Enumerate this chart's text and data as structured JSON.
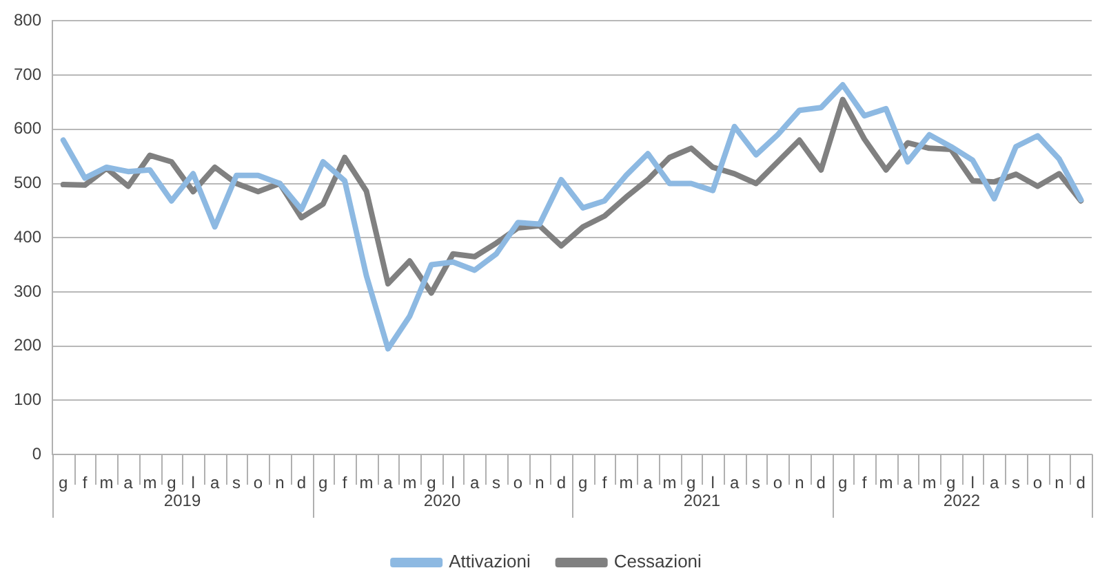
{
  "chart_data": {
    "type": "line",
    "categories": [
      "g",
      "f",
      "m",
      "a",
      "m",
      "g",
      "l",
      "a",
      "s",
      "o",
      "n",
      "d",
      "g",
      "f",
      "m",
      "a",
      "m",
      "g",
      "l",
      "a",
      "s",
      "o",
      "n",
      "d",
      "g",
      "f",
      "m",
      "a",
      "m",
      "g",
      "l",
      "a",
      "s",
      "o",
      "n",
      "d",
      "g",
      "f",
      "m",
      "a",
      "m",
      "g",
      "l",
      "a",
      "s",
      "o",
      "n",
      "d"
    ],
    "series": [
      {
        "name": "Attivazioni",
        "color": "#8db9e2",
        "values": [
          580,
          510,
          530,
          522,
          525,
          468,
          518,
          420,
          515,
          515,
          500,
          452,
          540,
          505,
          330,
          195,
          255,
          350,
          355,
          340,
          370,
          428,
          425,
          507,
          455,
          468,
          515,
          555,
          500,
          500,
          487,
          605,
          553,
          590,
          635,
          640,
          682,
          625,
          638,
          540,
          590,
          568,
          543,
          472,
          568,
          588,
          545,
          470
        ]
      },
      {
        "name": "Cessazioni",
        "color": "#808080",
        "values": [
          498,
          497,
          528,
          495,
          552,
          540,
          485,
          530,
          500,
          485,
          500,
          437,
          462,
          548,
          486,
          315,
          357,
          298,
          370,
          365,
          390,
          418,
          422,
          385,
          420,
          440,
          475,
          507,
          548,
          565,
          530,
          518,
          500,
          540,
          580,
          525,
          655,
          582,
          525,
          575,
          565,
          563,
          505,
          503,
          517,
          495,
          518,
          468
        ]
      }
    ],
    "annotations": [
      "2019",
      "2020",
      "2021",
      "2022"
    ],
    "ylim": [
      0,
      800
    ],
    "yticks": [
      0,
      100,
      200,
      300,
      400,
      500,
      600,
      700,
      800
    ],
    "grid": "y",
    "legend": "bottom",
    "marker": "none",
    "line_style": "solid"
  }
}
